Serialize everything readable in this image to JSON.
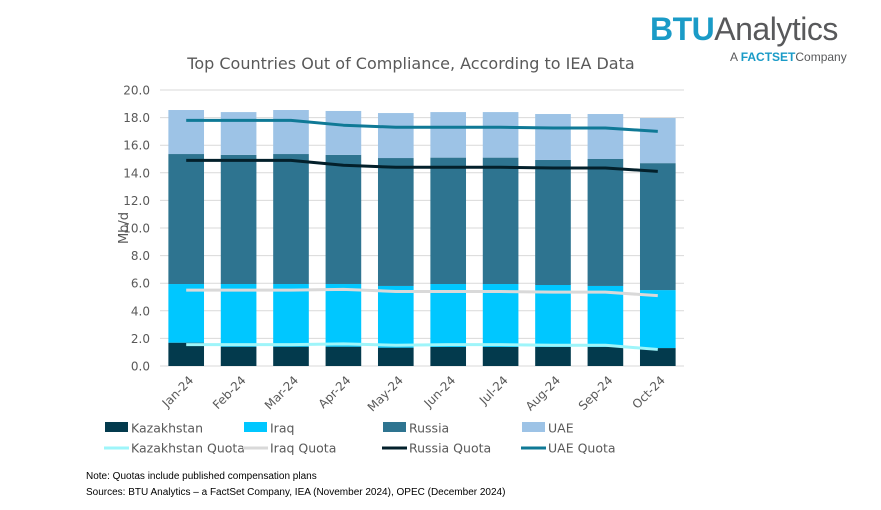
{
  "logo": {
    "brand_primary": "BTU",
    "brand_secondary": "Analytics",
    "tagline_prefix": "A",
    "tagline_brand": "FACTSET",
    "tagline_suffix": "Company"
  },
  "notes": {
    "note": "Note: Quotas include published compensation plans",
    "sources": "Sources: BTU Analytics – a FactSet Company, IEA (November 2024), OPEC (December 2024)"
  },
  "chart_data": {
    "type": "bar",
    "stacked": true,
    "title": "Top Countries Out of Compliance, According to IEA Data",
    "xlabel": "",
    "ylabel": "Mb/d",
    "ylim": [
      0,
      20
    ],
    "yticks": [
      "0.0",
      "2.0",
      "4.0",
      "6.0",
      "8.0",
      "10.0",
      "12.0",
      "14.0",
      "16.0",
      "18.0",
      "20.0"
    ],
    "grid": true,
    "legend_position": "bottom",
    "categories": [
      "Jan-24",
      "Feb-24",
      "Mar-24",
      "Apr-24",
      "May-24",
      "Jun-24",
      "Jul-24",
      "Aug-24",
      "Sep-24",
      "Oct-24"
    ],
    "series": [
      {
        "name": "Kazakhstan",
        "kind": "bar",
        "color": "#033a4d",
        "values": [
          1.69,
          1.4,
          1.4,
          1.4,
          1.33,
          1.38,
          1.38,
          1.38,
          1.38,
          1.3
        ]
      },
      {
        "name": "Iraq",
        "kind": "bar",
        "color": "#00c7ff",
        "values": [
          4.25,
          4.54,
          4.54,
          4.54,
          4.47,
          4.56,
          4.56,
          4.49,
          4.42,
          4.2
        ]
      },
      {
        "name": "Russia",
        "kind": "bar",
        "color": "#2e7490",
        "values": [
          9.42,
          9.36,
          9.42,
          9.36,
          9.27,
          9.16,
          9.16,
          9.06,
          9.2,
          9.2
        ]
      },
      {
        "name": "UAE",
        "kind": "bar",
        "color": "#9dc3e6",
        "values": [
          3.19,
          3.1,
          3.19,
          3.18,
          3.26,
          3.3,
          3.3,
          3.33,
          3.26,
          3.27
        ]
      },
      {
        "name": "Kazakhstan Quota",
        "kind": "line",
        "color": "#9ef5fa",
        "values": [
          1.55,
          1.55,
          1.55,
          1.6,
          1.5,
          1.55,
          1.55,
          1.5,
          1.5,
          1.2
        ]
      },
      {
        "name": "Iraq Quota",
        "kind": "line",
        "color": "#d9d9d9",
        "values": [
          5.5,
          5.5,
          5.5,
          5.55,
          5.4,
          5.4,
          5.4,
          5.35,
          5.35,
          5.1
        ]
      },
      {
        "name": "Russia Quota",
        "kind": "line",
        "color": "#03202b",
        "values": [
          14.9,
          14.9,
          14.9,
          14.55,
          14.4,
          14.4,
          14.4,
          14.35,
          14.35,
          14.1
        ]
      },
      {
        "name": "UAE Quota",
        "kind": "line",
        "color": "#0f7996",
        "values": [
          17.8,
          17.8,
          17.8,
          17.45,
          17.3,
          17.3,
          17.3,
          17.25,
          17.25,
          17.0
        ]
      }
    ]
  }
}
